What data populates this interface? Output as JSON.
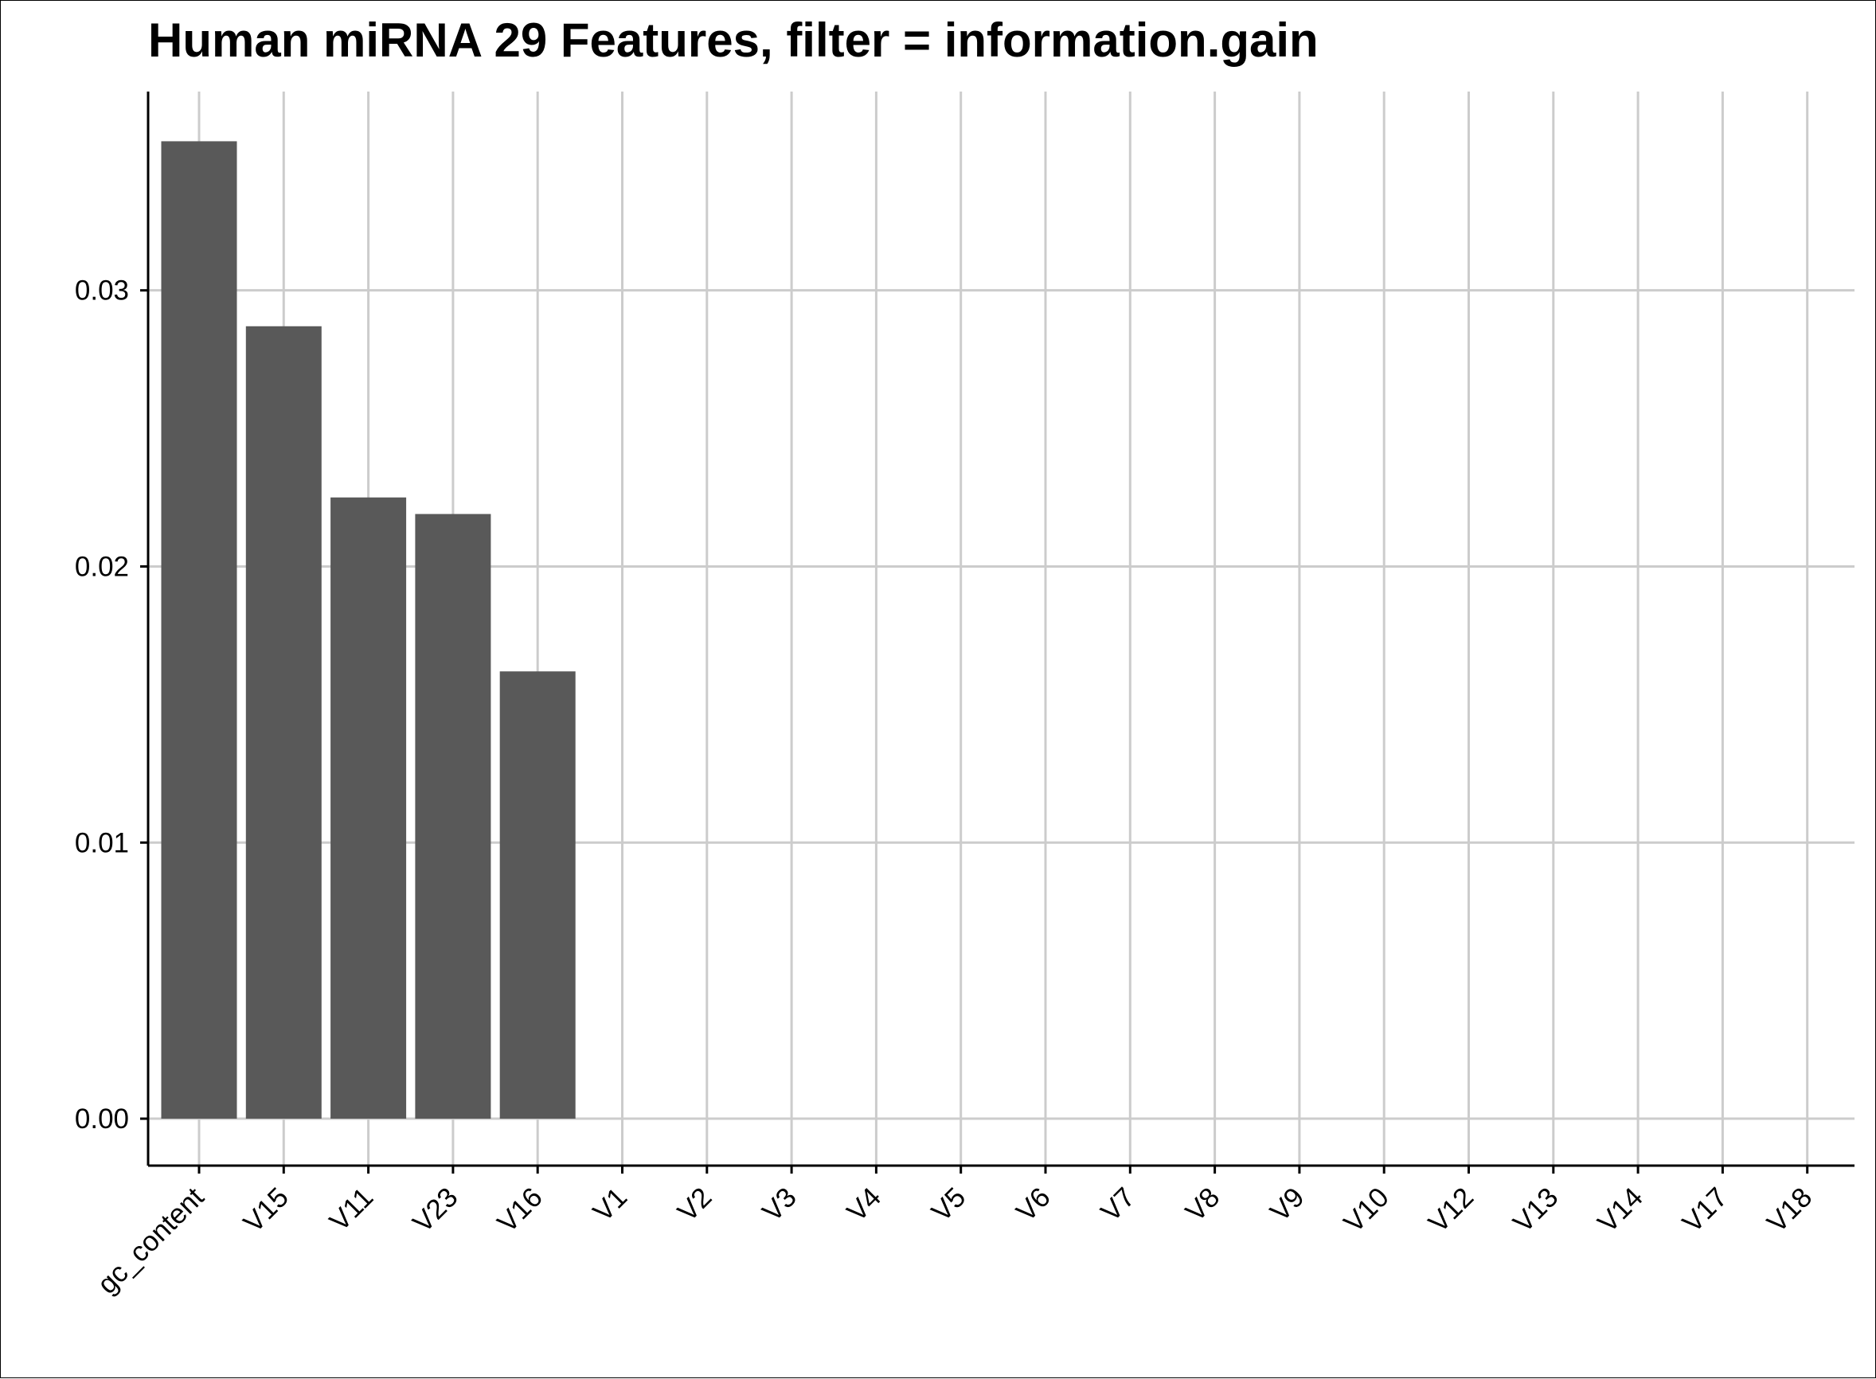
{
  "chart_data": {
    "type": "bar",
    "title": "Human miRNA 29 Features, filter = information.gain",
    "xlabel": "",
    "ylabel": "",
    "categories": [
      "gc_content",
      "V15",
      "V11",
      "V23",
      "V16",
      "V1",
      "V2",
      "V3",
      "V4",
      "V5",
      "V6",
      "V7",
      "V8",
      "V9",
      "V10",
      "V12",
      "V13",
      "V14",
      "V17",
      "V18"
    ],
    "values": [
      0.0354,
      0.0287,
      0.0225,
      0.0219,
      0.0162,
      0,
      0,
      0,
      0,
      0,
      0,
      0,
      0,
      0,
      0,
      0,
      0,
      0,
      0,
      0
    ],
    "yticks": [
      "0.00",
      "0.01",
      "0.02",
      "0.03"
    ],
    "ylim": [
      -0.0017,
      0.0372
    ],
    "grid": true,
    "legend": "none",
    "colors": {
      "bar": "#595959",
      "grid": "#cccccc",
      "axis": "#000000"
    }
  }
}
